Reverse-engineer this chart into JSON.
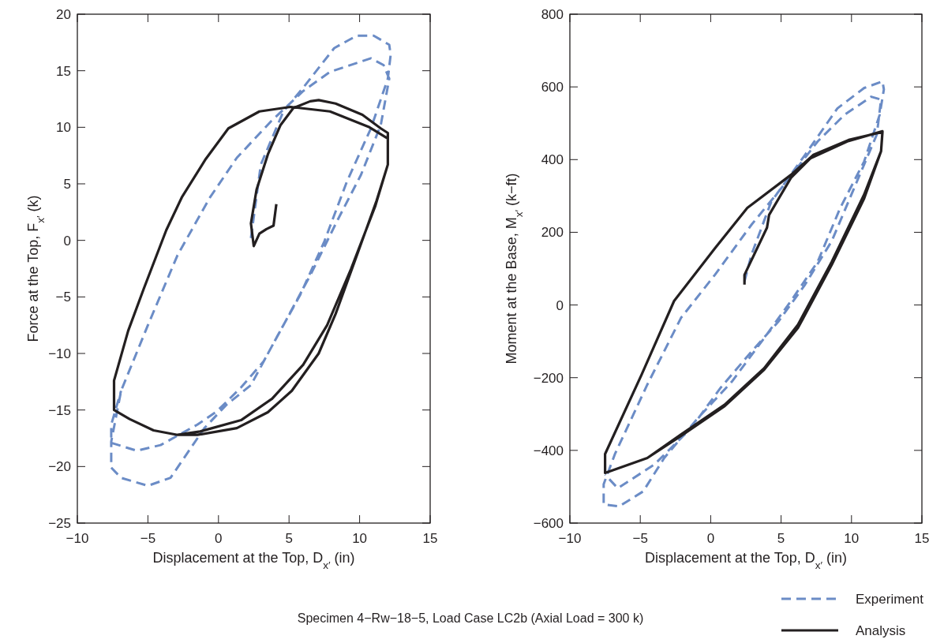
{
  "chart_data": [
    {
      "type": "line",
      "xlabel": "Displacement at the Top, D$_{x′}$ (in)",
      "ylabel": "Force at the Top, F$_{x′}$ (k)",
      "xlim": [
        -10,
        15
      ],
      "ylim": [
        -25,
        20
      ],
      "xticks": [
        -10,
        -5,
        0,
        5,
        10,
        15
      ],
      "yticks": [
        -25,
        -20,
        -15,
        -10,
        -5,
        0,
        5,
        10,
        15,
        20
      ],
      "grid": false,
      "legend": false,
      "series": [
        {
          "color": "#6b8cc6",
          "line_style": "dashed",
          "x": [
            2.3,
            3.0,
            4.6,
            6.0,
            8.2,
            9.8,
            11.0,
            12.1,
            12.2,
            12.0,
            10.8,
            9.1,
            7.5,
            5.8,
            4.2,
            2.3,
            0.6,
            -1.0,
            -3.4,
            -5.0,
            -6.9,
            -7.6,
            -7.6,
            -6.9,
            -5.0,
            -2.9,
            -0.6,
            1.3,
            3.7,
            6.0,
            7.9,
            10.8,
            11.7,
            12.1,
            11.5,
            10.1,
            8.4,
            6.5,
            4.6,
            3.2,
            1.6,
            -0.1,
            -1.5,
            -4.1,
            -5.8,
            -7.6,
            -7.6,
            -6.9
          ],
          "values": [
            0.2,
            6.7,
            11.4,
            13.5,
            17.0,
            18.1,
            18.1,
            17.3,
            16.4,
            14.3,
            9.9,
            5.2,
            -0.1,
            -4.8,
            -8.4,
            -12.8,
            -14.5,
            -16.6,
            -21.0,
            -21.7,
            -21.0,
            -20.1,
            -17.8,
            -13.3,
            -7.5,
            -1.3,
            3.8,
            7.3,
            10.5,
            13.2,
            14.9,
            16.1,
            15.5,
            14.3,
            10.2,
            5.8,
            1.7,
            -3.1,
            -7.5,
            -10.7,
            -13.0,
            -15.1,
            -16.3,
            -18.1,
            -18.6,
            -17.9,
            -16.3,
            -13.3
          ]
        },
        {
          "color": "#231f20",
          "line_style": "solid",
          "x": [
            4.1,
            3.9,
            3.4,
            2.9,
            2.5,
            2.3,
            2.7,
            3.5,
            4.4,
            5.3,
            6.5,
            7.1,
            8.3,
            10.2,
            11.5,
            12.0,
            12.0,
            11.2,
            9.9,
            8.3,
            7.1,
            5.2,
            3.5,
            1.3,
            -1.5,
            -2.9,
            -4.6,
            -6.3,
            -7.4,
            -7.4,
            -6.4,
            -5.3,
            -3.7,
            -2.6,
            -0.9,
            0.7,
            2.9,
            5.1,
            7.9,
            10.7,
            12.0,
            12.0,
            11.1,
            9.4,
            7.7,
            6.0,
            3.8,
            1.6,
            -1.3,
            -2.9
          ],
          "values": [
            3.2,
            1.3,
            1.0,
            0.6,
            -0.5,
            1.5,
            4.5,
            7.6,
            10.2,
            11.7,
            12.3,
            12.4,
            12.1,
            11.1,
            9.9,
            9.5,
            6.7,
            3.5,
            -1.0,
            -6.5,
            -10.0,
            -13.3,
            -15.2,
            -16.6,
            -17.2,
            -17.2,
            -16.8,
            -15.8,
            -15.0,
            -12.4,
            -8.0,
            -4.3,
            0.9,
            3.8,
            7.2,
            9.9,
            11.4,
            11.8,
            11.4,
            10.0,
            9.0,
            6.7,
            3.0,
            -2.5,
            -7.5,
            -11.0,
            -14.0,
            -15.9,
            -16.9,
            -17.2
          ]
        }
      ]
    },
    {
      "type": "line",
      "xlabel": "Displacement at the Top, D$_{x′}$ (in)",
      "ylabel": "Moment at the Base, M$_{x′}$ (k−ft)",
      "xlim": [
        -10,
        15
      ],
      "ylim": [
        -600,
        800
      ],
      "xticks": [
        -10,
        -5,
        0,
        5,
        10,
        15
      ],
      "yticks": [
        -600,
        -400,
        -200,
        0,
        200,
        400,
        600,
        800
      ],
      "grid": false,
      "legend": "bottom right",
      "annotations": [
        "Specimen 4−Rw−18−5, Load Case LC2b (Axial Load = 300 k)"
      ],
      "series": [
        {
          "name": "Experiment",
          "color": "#6b8cc6",
          "line_style": "dashed",
          "x": [
            2.4,
            2.9,
            4.3,
            6.7,
            9.0,
            10.9,
            12.2,
            12.3,
            12.0,
            10.9,
            9.2,
            7.6,
            5.7,
            3.8,
            1.5,
            -0.9,
            -3.3,
            -4.8,
            -6.5,
            -7.6,
            -7.6,
            -6.8,
            -4.5,
            -2.1,
            0.3,
            2.9,
            5.2,
            7.6,
            9.5,
            11.4,
            12.1,
            11.8,
            10.4,
            8.6,
            6.7,
            4.8,
            2.9,
            0.7,
            -1.4,
            -4.0,
            -6.6,
            -7.5
          ],
          "values": [
            65,
            139,
            284,
            413,
            541,
            597,
            615,
            593,
            523,
            395,
            267,
            119,
            11,
            -91,
            -211,
            -311,
            -421,
            -513,
            -554,
            -549,
            -493,
            -410,
            -219,
            -35,
            83,
            221,
            330,
            450,
            523,
            573,
            565,
            469,
            341,
            176,
            56,
            -46,
            -128,
            -228,
            -339,
            -439,
            -504,
            -467
          ]
        },
        {
          "name": "Analysis",
          "color": "#231f20",
          "line_style": "solid",
          "x": [
            2.4,
            2.4,
            4.0,
            4.15,
            5.7,
            7.1,
            9.7,
            12.2,
            12.1,
            10.9,
            8.6,
            6.2,
            3.8,
            1.0,
            -2.1,
            -4.5,
            -7.5,
            -7.5,
            -4.9,
            -2.6,
            0.3,
            2.6,
            5.7,
            7.3,
            9.8,
            12.2,
            12.1,
            10.9,
            8.6,
            6.2,
            3.8,
            1.0,
            -2.1,
            -4.5
          ],
          "values": [
            56,
            83,
            213,
            248,
            350,
            404,
            450,
            478,
            423,
            304,
            119,
            -54,
            -174,
            -274,
            -356,
            -421,
            -462,
            -410,
            -191,
            11,
            156,
            267,
            358,
            413,
            454,
            476,
            423,
            293,
            111,
            -63,
            -178,
            -278,
            -360,
            -421
          ]
        }
      ]
    }
  ]
}
